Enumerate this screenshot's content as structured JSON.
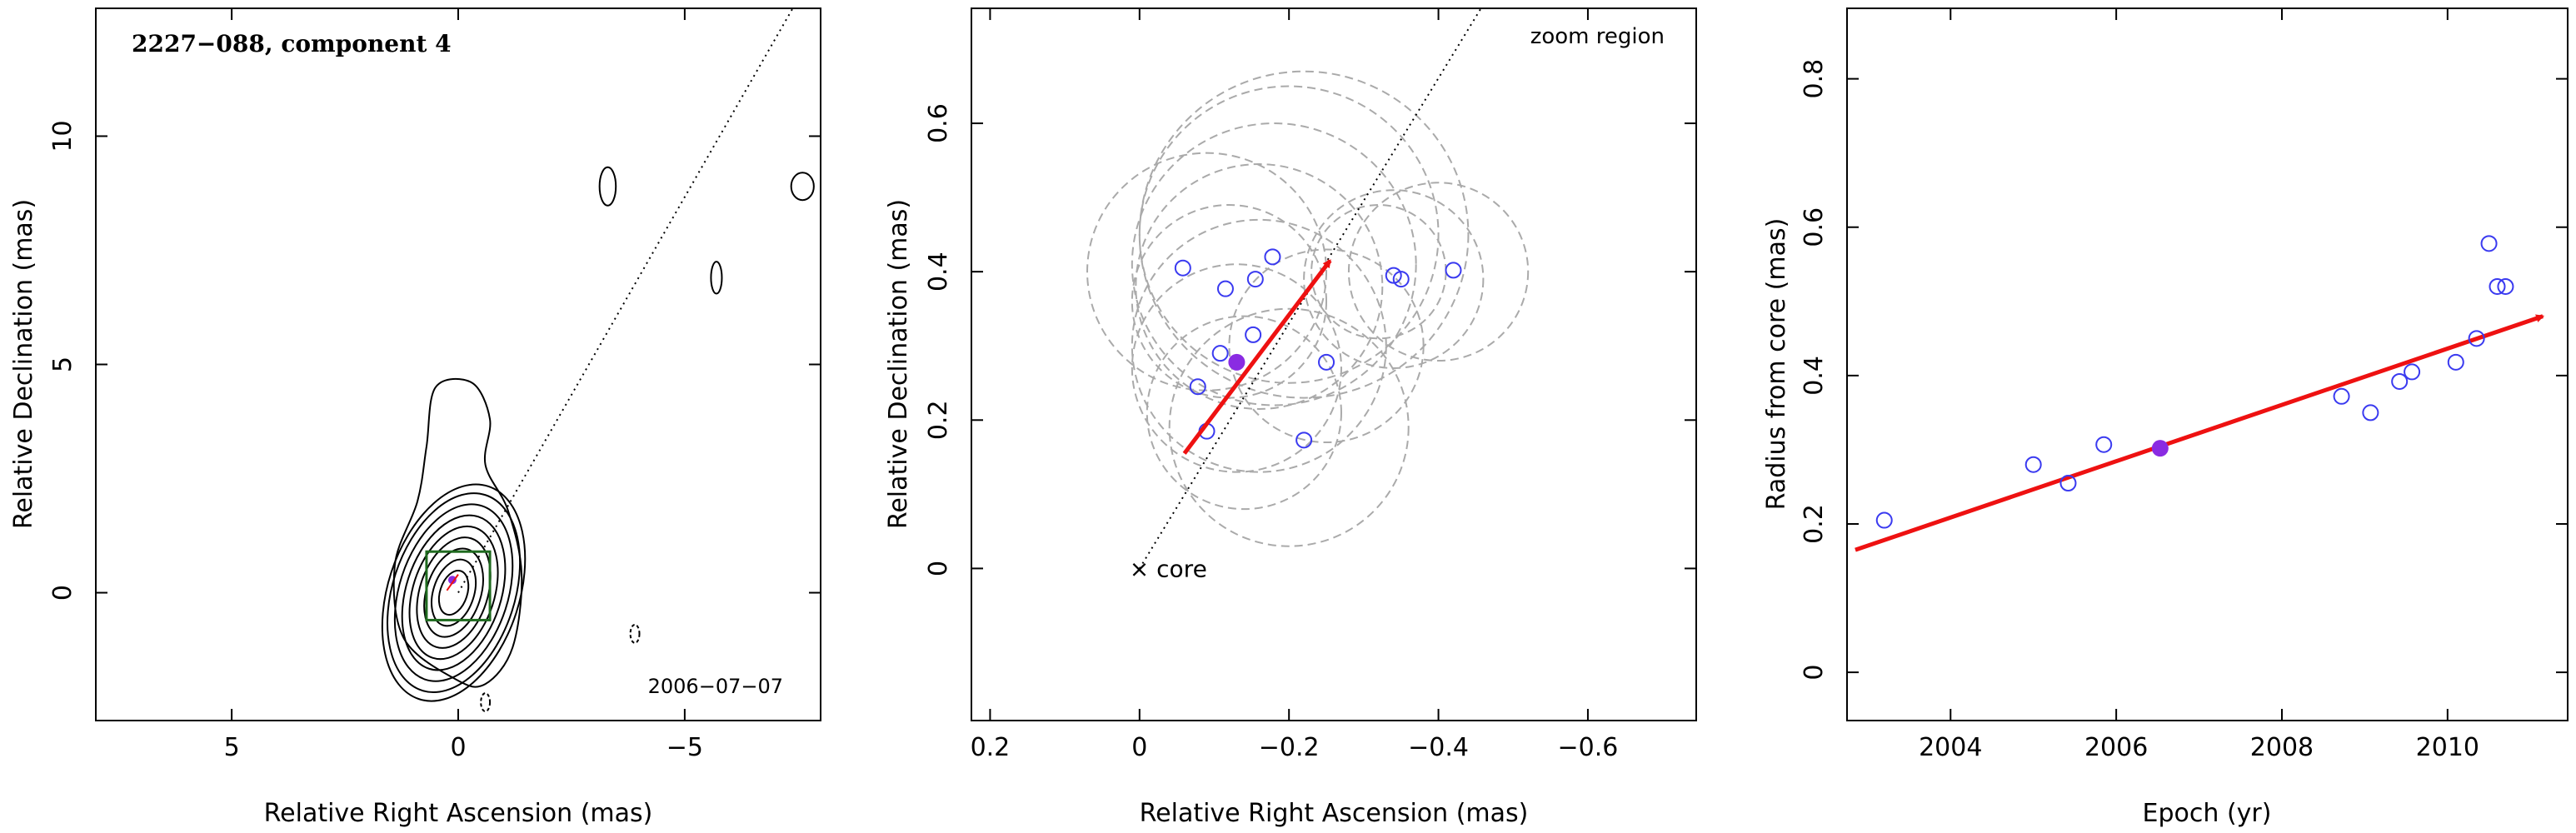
{
  "chart_data": [
    {
      "type": "contour",
      "title": "2227−088, component 4",
      "epoch_label": "2006−07−07",
      "xlabel": "Relative Right Ascension (mas)",
      "ylabel": "Relative Declination (mas)",
      "xlim": [
        8,
        -8
      ],
      "ylim": [
        -2.8,
        12.8
      ],
      "xticks": [
        5,
        0,
        -5
      ],
      "xtick_labels": [
        "5",
        "0",
        "−5"
      ],
      "yticks": [
        0,
        5,
        10
      ],
      "ytick_labels": [
        "0",
        "5",
        "10"
      ],
      "jet_line": {
        "from": [
          0,
          0
        ],
        "to": [
          -7.5,
          13
        ]
      },
      "component": {
        "x": 0.13,
        "y": 0.28
      },
      "zoom_box": {
        "x": [
          0.7,
          -0.7
        ],
        "y": [
          -0.6,
          0.9
        ]
      },
      "contour_center": {
        "x": 0.1,
        "y": 0.0
      },
      "contour_levels": [
        {
          "a": 0.3,
          "b": 0.5
        },
        {
          "a": 0.45,
          "b": 0.75
        },
        {
          "a": 0.6,
          "b": 1.0
        },
        {
          "a": 0.75,
          "b": 1.25
        },
        {
          "a": 0.9,
          "b": 1.5
        },
        {
          "a": 1.05,
          "b": 1.75
        },
        {
          "a": 1.2,
          "b": 2.0
        },
        {
          "a": 1.35,
          "b": 2.25
        },
        {
          "a": 1.45,
          "b": 2.45
        }
      ],
      "extended_contour": [
        [
          0.05,
          -1.9
        ],
        [
          1.2,
          -1.0
        ],
        [
          1.4,
          0.6
        ],
        [
          0.9,
          2.0
        ],
        [
          0.7,
          3.2
        ],
        [
          0.5,
          4.5
        ],
        [
          -0.3,
          4.6
        ],
        [
          -0.7,
          3.8
        ],
        [
          -0.6,
          2.8
        ],
        [
          -1.1,
          1.8
        ],
        [
          -1.4,
          0.4
        ],
        [
          -1.2,
          -1.2
        ],
        [
          -0.6,
          -2.0
        ]
      ],
      "outer_contours": [
        {
          "x": -3.3,
          "y": 8.9,
          "rx": 0.18,
          "ry": 0.42
        },
        {
          "x": -5.7,
          "y": 6.9,
          "rx": 0.12,
          "ry": 0.35
        },
        {
          "x": -7.6,
          "y": 8.9,
          "rx": 0.25,
          "ry": 0.3
        },
        {
          "x": -3.9,
          "y": -0.9,
          "rx": 0.1,
          "ry": 0.2,
          "dashed": true
        },
        {
          "x": -0.6,
          "y": -2.4,
          "rx": 0.1,
          "ry": 0.2,
          "dashed": true
        }
      ]
    },
    {
      "type": "scatter",
      "xlabel": "Relative Right Ascension (mas)",
      "ylabel": "Relative Declination (mas)",
      "xlim": [
        0.225,
        -0.745
      ],
      "ylim": [
        -0.205,
        0.755
      ],
      "xticks": [
        0.2,
        0,
        -0.2,
        -0.4,
        -0.6
      ],
      "xtick_labels": [
        "0.2",
        "0",
        "−0.2",
        "−0.4",
        "−0.6"
      ],
      "yticks": [
        0,
        0.2,
        0.4,
        0.6
      ],
      "ytick_labels": [
        "0",
        "0.2",
        "0.4",
        "0.6"
      ],
      "annotation_zoom": "zoom region",
      "annotation_core": "× core",
      "jet_line": {
        "from": [
          0,
          0
        ],
        "to": [
          -0.46,
          0.76
        ]
      },
      "points": [
        {
          "x": -0.058,
          "y": 0.405
        },
        {
          "x": -0.115,
          "y": 0.377
        },
        {
          "x": -0.155,
          "y": 0.39
        },
        {
          "x": -0.178,
          "y": 0.42
        },
        {
          "x": -0.108,
          "y": 0.29
        },
        {
          "x": -0.152,
          "y": 0.315
        },
        {
          "x": -0.078,
          "y": 0.245
        },
        {
          "x": -0.09,
          "y": 0.185
        },
        {
          "x": -0.25,
          "y": 0.278
        },
        {
          "x": -0.22,
          "y": 0.173
        },
        {
          "x": -0.34,
          "y": 0.395
        },
        {
          "x": -0.35,
          "y": 0.39
        },
        {
          "x": -0.42,
          "y": 0.402
        }
      ],
      "highlight": {
        "x": -0.13,
        "y": 0.278
      },
      "circles": [
        {
          "x": -0.16,
          "y": 0.38,
          "r": 0.165
        },
        {
          "x": -0.18,
          "y": 0.41,
          "r": 0.19
        },
        {
          "x": -0.2,
          "y": 0.45,
          "r": 0.2
        },
        {
          "x": -0.22,
          "y": 0.45,
          "r": 0.22
        },
        {
          "x": -0.09,
          "y": 0.4,
          "r": 0.16
        },
        {
          "x": -0.13,
          "y": 0.27,
          "r": 0.14
        },
        {
          "x": -0.16,
          "y": 0.3,
          "r": 0.17
        },
        {
          "x": -0.14,
          "y": 0.21,
          "r": 0.13
        },
        {
          "x": -0.2,
          "y": 0.19,
          "r": 0.16
        },
        {
          "x": -0.25,
          "y": 0.3,
          "r": 0.13
        },
        {
          "x": -0.34,
          "y": 0.39,
          "r": 0.12
        },
        {
          "x": -0.4,
          "y": 0.4,
          "r": 0.12
        },
        {
          "x": -0.32,
          "y": 0.4,
          "r": 0.09
        },
        {
          "x": -0.12,
          "y": 0.36,
          "r": 0.13
        }
      ],
      "arrow": {
        "from": [
          -0.06,
          0.155
        ],
        "to": [
          -0.255,
          0.415
        ]
      }
    },
    {
      "type": "scatter",
      "xlabel": "Epoch (yr)",
      "ylabel": "Radius from core (mas)",
      "xlim": [
        2002.75,
        2011.45
      ],
      "ylim": [
        -0.065,
        0.895
      ],
      "xticks": [
        2004,
        2006,
        2008,
        2010
      ],
      "xtick_labels": [
        "2004",
        "2006",
        "2008",
        "2010"
      ],
      "yticks": [
        0,
        0.2,
        0.4,
        0.6,
        0.8
      ],
      "ytick_labels": [
        "0",
        "0.2",
        "0.4",
        "0.6",
        "0.8"
      ],
      "points": [
        {
          "x": 2003.2,
          "y": 0.205
        },
        {
          "x": 2005.0,
          "y": 0.28
        },
        {
          "x": 2005.42,
          "y": 0.255
        },
        {
          "x": 2005.85,
          "y": 0.307
        },
        {
          "x": 2008.72,
          "y": 0.372
        },
        {
          "x": 2009.07,
          "y": 0.35
        },
        {
          "x": 2009.42,
          "y": 0.392
        },
        {
          "x": 2009.57,
          "y": 0.405
        },
        {
          "x": 2010.1,
          "y": 0.418
        },
        {
          "x": 2010.35,
          "y": 0.45
        },
        {
          "x": 2010.5,
          "y": 0.578
        },
        {
          "x": 2010.6,
          "y": 0.52
        },
        {
          "x": 2010.7,
          "y": 0.52
        }
      ],
      "highlight": {
        "x": 2006.53,
        "y": 0.302
      },
      "fit_arrow": {
        "from": [
          2002.85,
          0.165
        ],
        "to": [
          2011.15,
          0.48
        ]
      }
    }
  ],
  "colors": {
    "axis": "#000000",
    "point": "#3a3af0",
    "highlight": "#8a2be2",
    "arrow": "#ee1111",
    "circle": "#aaaaaa",
    "zoom_box": "#1f6b1f",
    "contour": "#000000"
  }
}
